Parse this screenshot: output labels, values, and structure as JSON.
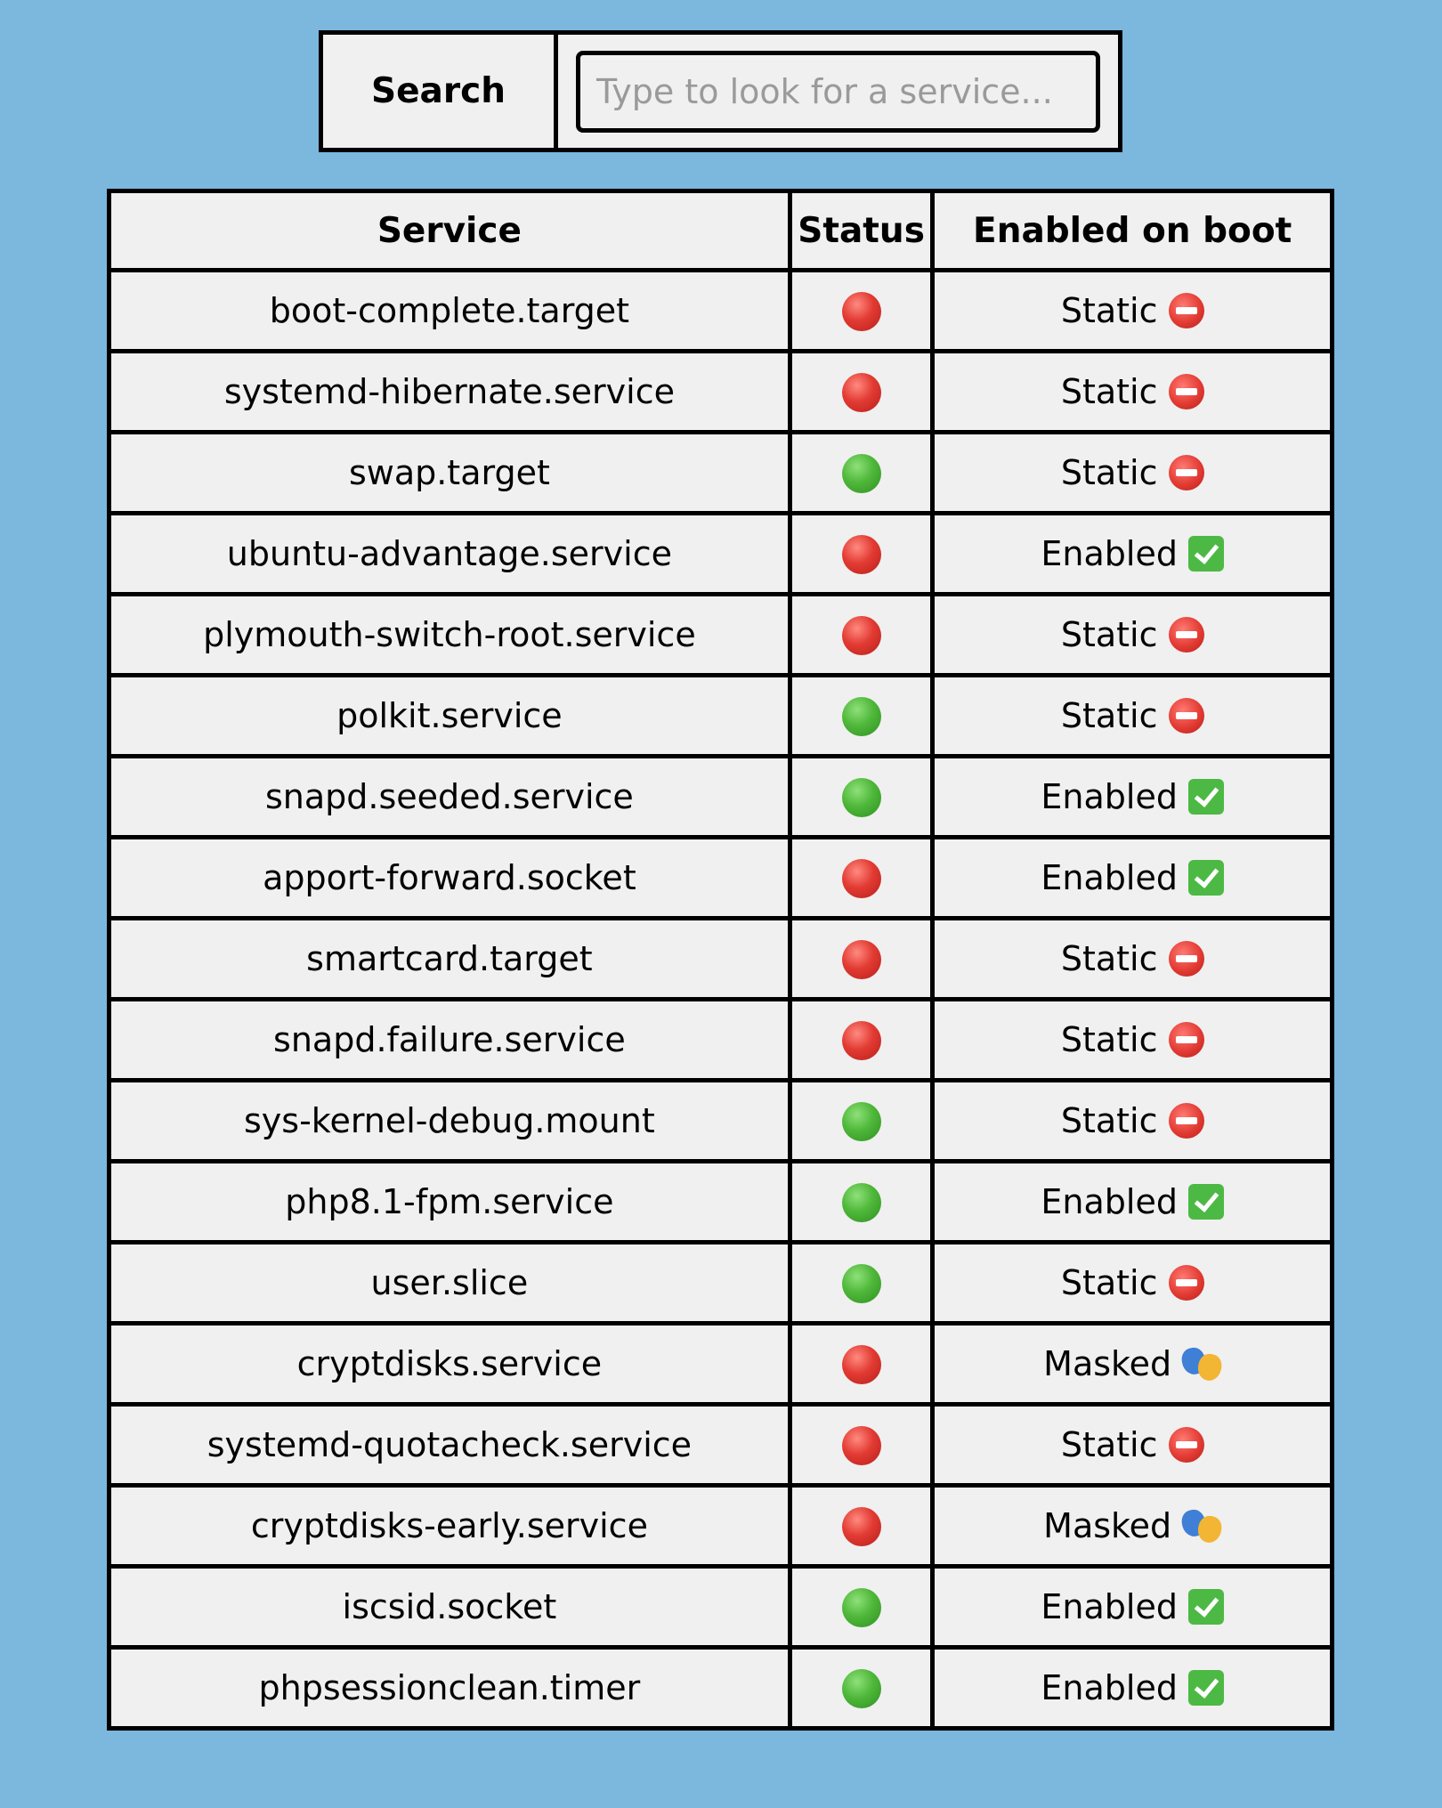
{
  "search": {
    "label": "Search",
    "placeholder": "Type to look for a service...",
    "value": ""
  },
  "table": {
    "headers": {
      "service": "Service",
      "status": "Status",
      "enabled_on_boot": "Enabled on boot"
    },
    "rows": [
      {
        "service": "boot-complete.target",
        "status": "stopped",
        "boot": "Static",
        "boot_icon": "no-entry-icon"
      },
      {
        "service": "systemd-hibernate.service",
        "status": "stopped",
        "boot": "Static",
        "boot_icon": "no-entry-icon"
      },
      {
        "service": "swap.target",
        "status": "running",
        "boot": "Static",
        "boot_icon": "no-entry-icon"
      },
      {
        "service": "ubuntu-advantage.service",
        "status": "stopped",
        "boot": "Enabled",
        "boot_icon": "check-icon"
      },
      {
        "service": "plymouth-switch-root.service",
        "status": "stopped",
        "boot": "Static",
        "boot_icon": "no-entry-icon"
      },
      {
        "service": "polkit.service",
        "status": "running",
        "boot": "Static",
        "boot_icon": "no-entry-icon"
      },
      {
        "service": "snapd.seeded.service",
        "status": "running",
        "boot": "Enabled",
        "boot_icon": "check-icon"
      },
      {
        "service": "apport-forward.socket",
        "status": "stopped",
        "boot": "Enabled",
        "boot_icon": "check-icon"
      },
      {
        "service": "smartcard.target",
        "status": "stopped",
        "boot": "Static",
        "boot_icon": "no-entry-icon"
      },
      {
        "service": "snapd.failure.service",
        "status": "stopped",
        "boot": "Static",
        "boot_icon": "no-entry-icon"
      },
      {
        "service": "sys-kernel-debug.mount",
        "status": "running",
        "boot": "Static",
        "boot_icon": "no-entry-icon"
      },
      {
        "service": "php8.1-fpm.service",
        "status": "running",
        "boot": "Enabled",
        "boot_icon": "check-icon"
      },
      {
        "service": "user.slice",
        "status": "running",
        "boot": "Static",
        "boot_icon": "no-entry-icon"
      },
      {
        "service": "cryptdisks.service",
        "status": "stopped",
        "boot": "Masked",
        "boot_icon": "masks-icon"
      },
      {
        "service": "systemd-quotacheck.service",
        "status": "stopped",
        "boot": "Static",
        "boot_icon": "no-entry-icon"
      },
      {
        "service": "cryptdisks-early.service",
        "status": "stopped",
        "boot": "Masked",
        "boot_icon": "masks-icon"
      },
      {
        "service": "iscsid.socket",
        "status": "running",
        "boot": "Enabled",
        "boot_icon": "check-icon"
      },
      {
        "service": "phpsessionclean.timer",
        "status": "running",
        "boot": "Enabled",
        "boot_icon": "check-icon"
      }
    ]
  },
  "colors": {
    "background": "#7cb7dd",
    "panel": "#f0f0f0",
    "border": "#000000",
    "status_running": "#4fb83a",
    "status_stopped": "#e23b33"
  }
}
